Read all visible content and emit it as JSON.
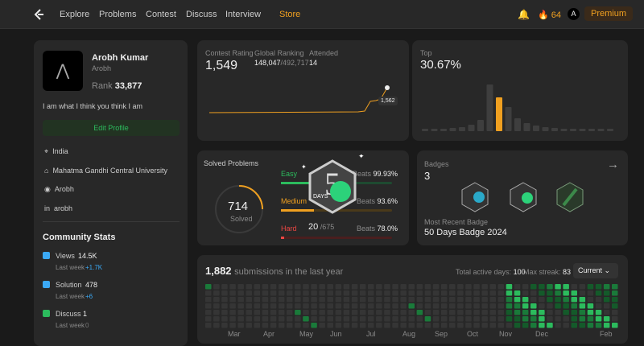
{
  "nav": {
    "items": [
      "Explore",
      "Problems",
      "Contest",
      "Discuss",
      "Interview",
      "Store"
    ],
    "streak": "64",
    "avatar": "A",
    "premium": "Premium"
  },
  "profile": {
    "name": "Arobh Kumar",
    "username": "Arobh",
    "rank_label": "Rank",
    "rank": "33,877",
    "bio": "I am what I think you think I am",
    "edit": "Edit Profile",
    "location": "India",
    "school": "Mahatma Gandhi Central University",
    "github": "Arobh",
    "linkedin": "arobh"
  },
  "community": {
    "title": "Community Stats",
    "last_week": "Last week",
    "items": [
      {
        "label": "Views",
        "value": "14.5K",
        "change": "+1.7K"
      },
      {
        "label": "Solution",
        "value": "478",
        "change": "+6"
      },
      {
        "label": "Discuss",
        "value": "1",
        "change": "0"
      }
    ]
  },
  "contest": {
    "rating_label": "Contest Rating",
    "rating": "1,549",
    "global_label": "Global Ranking",
    "global": "148,047",
    "global_total": "/492,717",
    "attended_label": "Attended",
    "attended": "14",
    "point": "1,562",
    "top_label": "Top",
    "top": "30.67%"
  },
  "solved": {
    "title": "Solved Problems",
    "total": "714",
    "total_label": "Solved",
    "badge_text": "DAYS",
    "easy": "Easy",
    "easy_beats": "Beats",
    "easy_pct": "99.93%",
    "medium": "Medium",
    "medium_beats": "Beats",
    "medium_pct": "93.6%",
    "hard": "Hard",
    "hard_count": "20",
    "hard_total": "/675",
    "hard_beats": "Beats",
    "hard_pct": "78.0%"
  },
  "badges": {
    "title": "Badges",
    "count": "3",
    "recent_label": "Most Recent Badge",
    "recent": "50 Days Badge 2024"
  },
  "submissions": {
    "count": "1,882",
    "text": "submissions in the last year",
    "active_label": "Total active days:",
    "active": "100",
    "streak_label": "Max streak:",
    "streak": "83",
    "select": "Current",
    "months": [
      "Mar",
      "Apr",
      "May",
      "Jun",
      "Jul",
      "Aug",
      "Sep",
      "Oct",
      "Nov",
      "Dec",
      "Feb"
    ]
  }
}
